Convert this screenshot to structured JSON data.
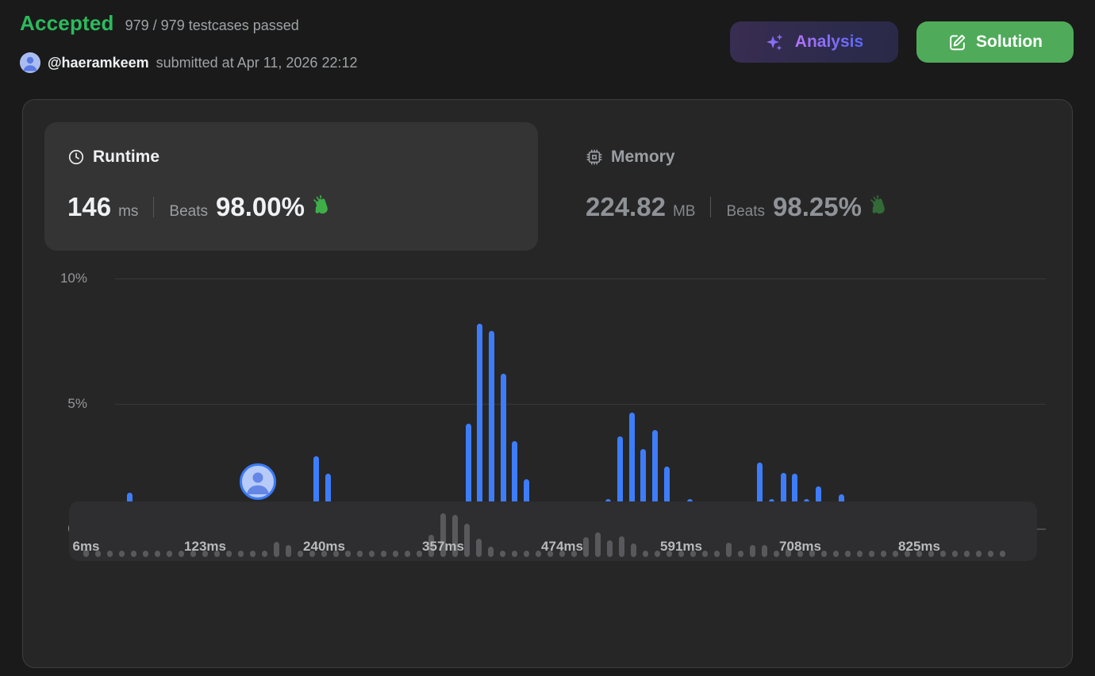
{
  "header": {
    "status": "Accepted",
    "testcases_text": "979 / 979 testcases passed",
    "username": "@haeramkeem",
    "submitted_text": "submitted at Apr 11, 2026 22:12"
  },
  "actions": {
    "analysis_label": "Analysis",
    "solution_label": "Solution"
  },
  "tabs": {
    "runtime": {
      "label": "Runtime",
      "value": "146",
      "unit": "ms",
      "beats_label": "Beats",
      "beats_value": "98.00%"
    },
    "memory": {
      "label": "Memory",
      "value": "224.82",
      "unit": "MB",
      "beats_label": "Beats",
      "beats_value": "98.25%"
    }
  },
  "icons": {
    "runtime": "clock-icon",
    "memory": "chip-icon",
    "analysis": "sparkles-icon",
    "solution": "edit-icon",
    "beats": "waving-hand-icon",
    "user": "person-avatar-icon"
  },
  "colors": {
    "accepted_green": "#2cbb5d",
    "solution_button_green": "#4fab59",
    "analysis_text_from": "#b473f8",
    "analysis_text_to": "#5868f8",
    "bar_blue": "#3e7dfa",
    "marker_ring_blue": "#3b7af5",
    "brush_bar_gray": "#59595d",
    "card_background": "#262627",
    "runtime_tab_background": "#343435"
  },
  "chart_data": {
    "type": "bar",
    "title": "",
    "xlabel": "",
    "ylabel": "",
    "ylim": [
      0,
      10
    ],
    "grid": "horizontal",
    "yticks": [
      "0%",
      "5%",
      "10%"
    ],
    "xticks": [
      "6ms",
      "123ms",
      "240ms",
      "357ms",
      "474ms",
      "591ms",
      "708ms",
      "825ms"
    ],
    "xtick_indices": [
      0,
      10,
      20,
      30,
      40,
      50,
      60,
      70
    ],
    "bin_width_ms": 11.7,
    "user_bar_index": 11,
    "user_runtime_ms": 146,
    "values": [
      1.45,
      0.78,
      0.35,
      0.35,
      0.35,
      0.35,
      0.35,
      0.3,
      0.35,
      0.35,
      0.45,
      0.5,
      0.5,
      0.35,
      0.3,
      0.4,
      2.9,
      2.2,
      0.75,
      0.35,
      0.6,
      0.6,
      0.4,
      0.35,
      0.3,
      0.3,
      0.3,
      0.4,
      0.3,
      4.2,
      8.2,
      7.9,
      6.2,
      3.5,
      2.0,
      1.1,
      0.45,
      0.35,
      0.45,
      0.3,
      0.7,
      1.2,
      3.7,
      4.65,
      3.2,
      3.95,
      2.5,
      0.7,
      1.2,
      0.37,
      0.45,
      0.45,
      0.4,
      0.95,
      2.65,
      1.2,
      2.25,
      2.2,
      1.2,
      1.7,
      0.95,
      1.4,
      0.45,
      0.35,
      0.35,
      0.35,
      0.45,
      0.4,
      0.4,
      0.4,
      0.4,
      0.45,
      0.4,
      0.35,
      0.4,
      0.4,
      0.45,
      0.4
    ]
  }
}
